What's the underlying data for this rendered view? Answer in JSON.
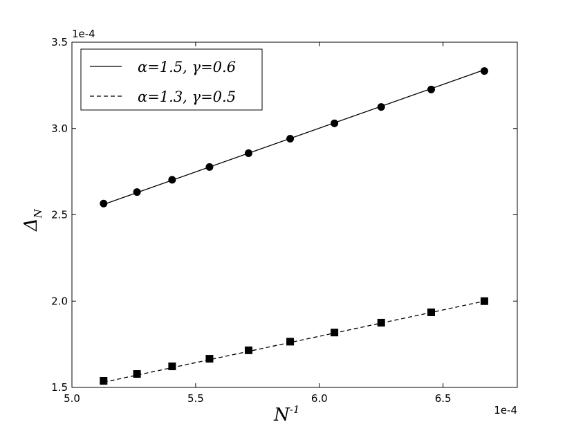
{
  "chart_data": {
    "type": "line",
    "title": "",
    "xlabel": "N",
    "xlabel_sup": "-1",
    "ylabel": "Δ",
    "ylabel_sub": "N",
    "x_offset_label": "1e-4",
    "y_offset_label": "1e-4",
    "xlim": [
      5.0,
      6.8
    ],
    "ylim": [
      1.5,
      3.5
    ],
    "x_ticks": [
      5.0,
      5.5,
      6.0,
      6.5
    ],
    "x_tick_labels": [
      "5.0",
      "5.5",
      "6.0",
      "6.5"
    ],
    "y_ticks": [
      1.5,
      2.0,
      2.5,
      3.0,
      3.5
    ],
    "y_tick_labels": [
      "1.5",
      "2.0",
      "2.5",
      "3.0",
      "3.5"
    ],
    "grid": false,
    "legend_position": "top-left",
    "x": [
      5.128,
      5.263,
      5.405,
      5.556,
      5.714,
      5.882,
      6.061,
      6.25,
      6.452,
      6.667
    ],
    "series": [
      {
        "name": "α=1.5, γ=0.6",
        "line_style": "solid",
        "marker": "circle",
        "fit_line": [
          [
            5.128,
            2.56
          ],
          [
            6.667,
            3.34
          ]
        ],
        "values": [
          2.565,
          2.632,
          2.703,
          2.777,
          2.857,
          2.941,
          3.03,
          3.125,
          3.226,
          3.333
        ]
      },
      {
        "name": "α=1.3, γ=0.5",
        "line_style": "dashed",
        "marker": "square",
        "fit_line": [
          [
            5.128,
            1.53
          ],
          [
            6.667,
            2.0
          ]
        ],
        "values": [
          1.538,
          1.578,
          1.622,
          1.666,
          1.715,
          1.765,
          1.818,
          1.875,
          1.935,
          2.0
        ]
      }
    ]
  }
}
